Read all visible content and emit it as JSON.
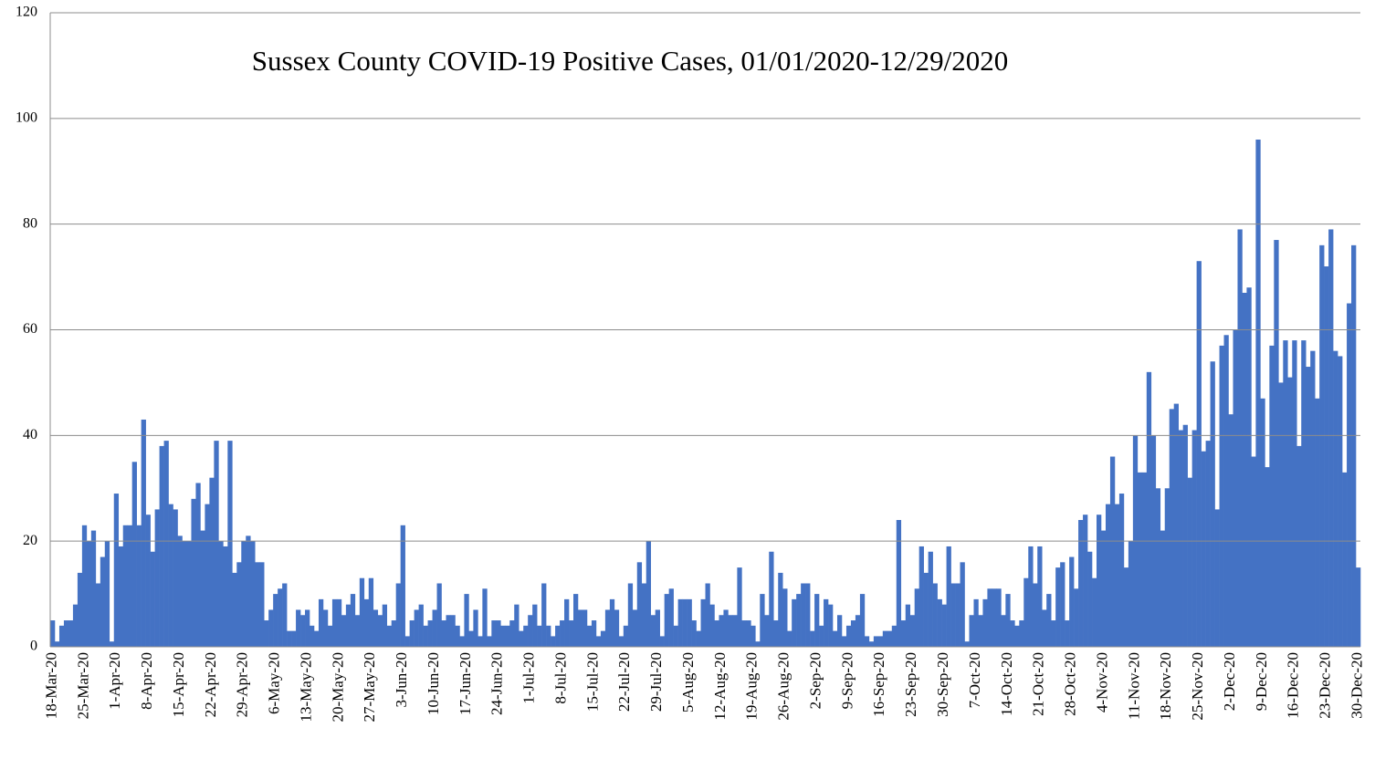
{
  "chart_data": {
    "type": "bar",
    "title": "Sussex County COVID-19 Positive Cases, 01/01/2020-12/29/2020",
    "color": "#4472c4",
    "grid": true,
    "ylim": [
      0,
      120
    ],
    "yticks": [
      0,
      20,
      40,
      60,
      80,
      100,
      120
    ],
    "categories": [
      "18-Mar-20",
      null,
      null,
      null,
      null,
      null,
      null,
      "25-Mar-20",
      null,
      null,
      null,
      null,
      null,
      null,
      "1-Apr-20",
      null,
      null,
      null,
      null,
      null,
      null,
      "8-Apr-20",
      null,
      null,
      null,
      null,
      null,
      null,
      "15-Apr-20",
      null,
      null,
      null,
      null,
      null,
      null,
      "22-Apr-20",
      null,
      null,
      null,
      null,
      null,
      null,
      "29-Apr-20",
      null,
      null,
      null,
      null,
      null,
      null,
      "6-May-20",
      null,
      null,
      null,
      null,
      null,
      null,
      "13-May-20",
      null,
      null,
      null,
      null,
      null,
      null,
      "20-May-20",
      null,
      null,
      null,
      null,
      null,
      null,
      "27-May-20",
      null,
      null,
      null,
      null,
      null,
      null,
      "3-Jun-20",
      null,
      null,
      null,
      null,
      null,
      null,
      "10-Jun-20",
      null,
      null,
      null,
      null,
      null,
      null,
      "17-Jun-20",
      null,
      null,
      null,
      null,
      null,
      null,
      "24-Jun-20",
      null,
      null,
      null,
      null,
      null,
      null,
      "1-Jul-20",
      null,
      null,
      null,
      null,
      null,
      null,
      "8-Jul-20",
      null,
      null,
      null,
      null,
      null,
      null,
      "15-Jul-20",
      null,
      null,
      null,
      null,
      null,
      null,
      "22-Jul-20",
      null,
      null,
      null,
      null,
      null,
      null,
      "29-Jul-20",
      null,
      null,
      null,
      null,
      null,
      null,
      "5-Aug-20",
      null,
      null,
      null,
      null,
      null,
      null,
      "12-Aug-20",
      null,
      null,
      null,
      null,
      null,
      null,
      "19-Aug-20",
      null,
      null,
      null,
      null,
      null,
      null,
      "26-Aug-20",
      null,
      null,
      null,
      null,
      null,
      null,
      "2-Sep-20",
      null,
      null,
      null,
      null,
      null,
      null,
      "9-Sep-20",
      null,
      null,
      null,
      null,
      null,
      null,
      "16-Sep-20",
      null,
      null,
      null,
      null,
      null,
      null,
      "23-Sep-20",
      null,
      null,
      null,
      null,
      null,
      null,
      "30-Sep-20",
      null,
      null,
      null,
      null,
      null,
      null,
      "7-Oct-20",
      null,
      null,
      null,
      null,
      null,
      null,
      "14-Oct-20",
      null,
      null,
      null,
      null,
      null,
      null,
      "21-Oct-20",
      null,
      null,
      null,
      null,
      null,
      null,
      "28-Oct-20",
      null,
      null,
      null,
      null,
      null,
      null,
      "4-Nov-20",
      null,
      null,
      null,
      null,
      null,
      null,
      "11-Nov-20",
      null,
      null,
      null,
      null,
      null,
      null,
      "18-Nov-20",
      null,
      null,
      null,
      null,
      null,
      null,
      "25-Nov-20",
      null,
      null,
      null,
      null,
      null,
      null,
      "2-Dec-20",
      null,
      null,
      null,
      null,
      null,
      null,
      "9-Dec-20",
      null,
      null,
      null,
      null,
      null,
      null,
      "16-Dec-20",
      null,
      null,
      null,
      null,
      null,
      null,
      "23-Dec-20",
      null,
      null,
      null,
      null,
      null,
      null,
      "30-Dec-20"
    ],
    "values": [
      5,
      1,
      4,
      5,
      5,
      8,
      14,
      23,
      20,
      22,
      12,
      17,
      20,
      1,
      29,
      19,
      23,
      23,
      35,
      23,
      43,
      25,
      18,
      26,
      38,
      39,
      27,
      26,
      21,
      20,
      20,
      28,
      31,
      22,
      27,
      32,
      39,
      20,
      19,
      39,
      14,
      16,
      20,
      21,
      20,
      16,
      16,
      5,
      7,
      10,
      11,
      12,
      3,
      3,
      7,
      6,
      7,
      4,
      3,
      9,
      7,
      4,
      9,
      9,
      6,
      8,
      10,
      6,
      13,
      9,
      13,
      7,
      6,
      8,
      4,
      5,
      12,
      23,
      2,
      5,
      7,
      8,
      4,
      5,
      7,
      12,
      5,
      6,
      6,
      4,
      2,
      10,
      3,
      7,
      2,
      11,
      2,
      5,
      5,
      4,
      4,
      5,
      8,
      3,
      4,
      6,
      8,
      4,
      12,
      4,
      2,
      4,
      5,
      9,
      5,
      10,
      7,
      7,
      4,
      5,
      2,
      3,
      7,
      9,
      7,
      2,
      4,
      12,
      7,
      16,
      12,
      20,
      6,
      7,
      2,
      10,
      11,
      4,
      9,
      9,
      9,
      5,
      3,
      9,
      12,
      8,
      5,
      6,
      7,
      6,
      6,
      15,
      5,
      5,
      4,
      1,
      10,
      6,
      18,
      5,
      14,
      11,
      3,
      9,
      10,
      12,
      12,
      3,
      10,
      4,
      9,
      8,
      3,
      6,
      2,
      4,
      5,
      6,
      10,
      2,
      1,
      2,
      2,
      3,
      3,
      4,
      24,
      5,
      8,
      6,
      11,
      19,
      14,
      18,
      12,
      9,
      8,
      19,
      12,
      12,
      16,
      1,
      6,
      9,
      6,
      9,
      11,
      11,
      11,
      6,
      10,
      5,
      4,
      5,
      13,
      19,
      12,
      19,
      7,
      10,
      5,
      15,
      16,
      5,
      17,
      11,
      24,
      25,
      18,
      13,
      25,
      22,
      27,
      36,
      27,
      29,
      15,
      20,
      40,
      33,
      33,
      52,
      40,
      30,
      22,
      30,
      45,
      46,
      41,
      42,
      32,
      41,
      73,
      37,
      39,
      54,
      26,
      57,
      59,
      44,
      60,
      79,
      67,
      68,
      36,
      96,
      47,
      34,
      57,
      77,
      50,
      58,
      51,
      58,
      38,
      58,
      53,
      56,
      47,
      76,
      72,
      79,
      56,
      55,
      33,
      65,
      76,
      15
    ]
  }
}
